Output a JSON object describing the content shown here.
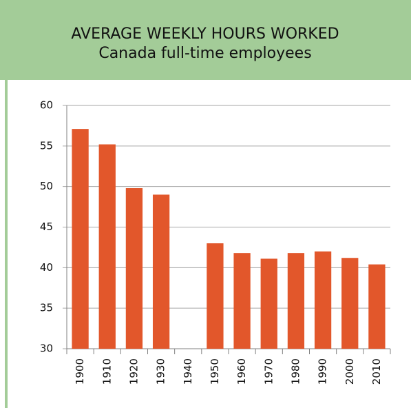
{
  "chart_data": {
    "type": "bar",
    "title": "AVERAGE WEEKLY HOURS WORKED",
    "subtitle": "Canada full-time employees",
    "categories": [
      "1900",
      "1910",
      "1920",
      "1930",
      "1940",
      "1950",
      "1960",
      "1970",
      "1980",
      "1990",
      "2000",
      "2010"
    ],
    "values": [
      57.1,
      55.2,
      49.8,
      49.0,
      null,
      43.0,
      41.8,
      41.1,
      41.8,
      42.0,
      41.2,
      40.4
    ],
    "color": "#e2572b",
    "ylim": [
      30,
      60
    ],
    "yticks": [
      30,
      35,
      40,
      45,
      50,
      55,
      60
    ],
    "grid": true
  }
}
